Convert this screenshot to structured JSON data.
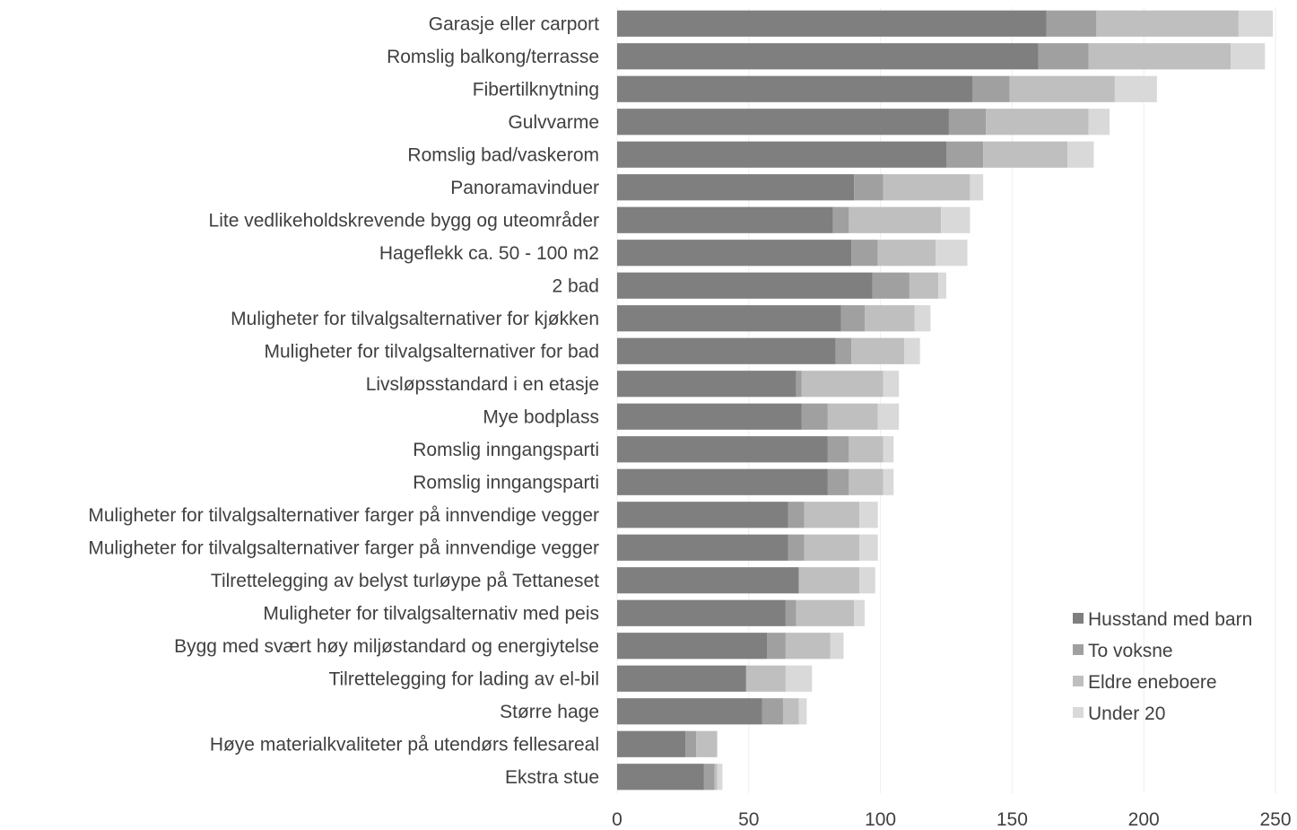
{
  "chart_data": {
    "type": "bar",
    "orientation": "horizontal",
    "stacked": true,
    "categories": [
      "Garasje eller carport",
      "Romslig balkong/terrasse",
      "Fibertilknytning",
      "Gulvvarme",
      "Romslig bad/vaskerom",
      "Panoramavinduer",
      "Lite vedlikeholdskrevende bygg og uteområder",
      "Hageflekk ca. 50 - 100 m2",
      "2 bad",
      "Muligheter for tilvalgsalternativer for kjøkken",
      "Muligheter for tilvalgsalternativer for bad",
      "Livsløpsstandard i en etasje",
      "Mye bodplass",
      "Romslig inngangsparti",
      "Romslig inngangsparti",
      "Muligheter for tilvalgsalternativer farger på innvendige vegger",
      "Muligheter for tilvalgsalternativer farger på innvendige vegger",
      "Tilrettelegging av belyst turløype på Tettaneset",
      "Muligheter for tilvalgsalternativ med peis",
      "Bygg med svært høy miljøstandard og energiytelse",
      "Tilrettelegging for lading av el-bil",
      "Større hage",
      "Høye materialkvaliteter på utendørs fellesareal",
      "Ekstra stue"
    ],
    "series": [
      {
        "name": "Husstand med barn",
        "color": "#7f7f7f",
        "values": [
          163,
          160,
          135,
          126,
          125,
          90,
          82,
          89,
          97,
          85,
          83,
          68,
          70,
          80,
          80,
          65,
          65,
          69,
          64,
          57,
          49,
          55,
          26,
          33
        ]
      },
      {
        "name": "To voksne",
        "color": "#a0a0a0",
        "values": [
          19,
          19,
          14,
          14,
          14,
          11,
          6,
          10,
          14,
          9,
          6,
          2,
          10,
          8,
          8,
          6,
          6,
          0,
          4,
          7,
          0,
          8,
          4,
          4
        ]
      },
      {
        "name": "Eldre eneboere",
        "color": "#bfbfbf",
        "values": [
          54,
          54,
          40,
          39,
          32,
          33,
          35,
          22,
          11,
          19,
          20,
          31,
          19,
          13,
          13,
          21,
          21,
          23,
          22,
          17,
          15,
          6,
          8,
          1
        ]
      },
      {
        "name": "Under 20",
        "color": "#d9d9d9",
        "values": [
          13,
          13,
          16,
          8,
          10,
          5,
          11,
          12,
          3,
          6,
          6,
          6,
          8,
          4,
          4,
          7,
          7,
          6,
          4,
          5,
          10,
          3,
          0,
          2
        ]
      }
    ],
    "xlim": [
      0,
      250
    ],
    "xticks": [
      0,
      50,
      100,
      150,
      200,
      250
    ],
    "xlabel": "",
    "ylabel": "",
    "title": "",
    "grid": true,
    "legend_position": "bottom-right"
  }
}
